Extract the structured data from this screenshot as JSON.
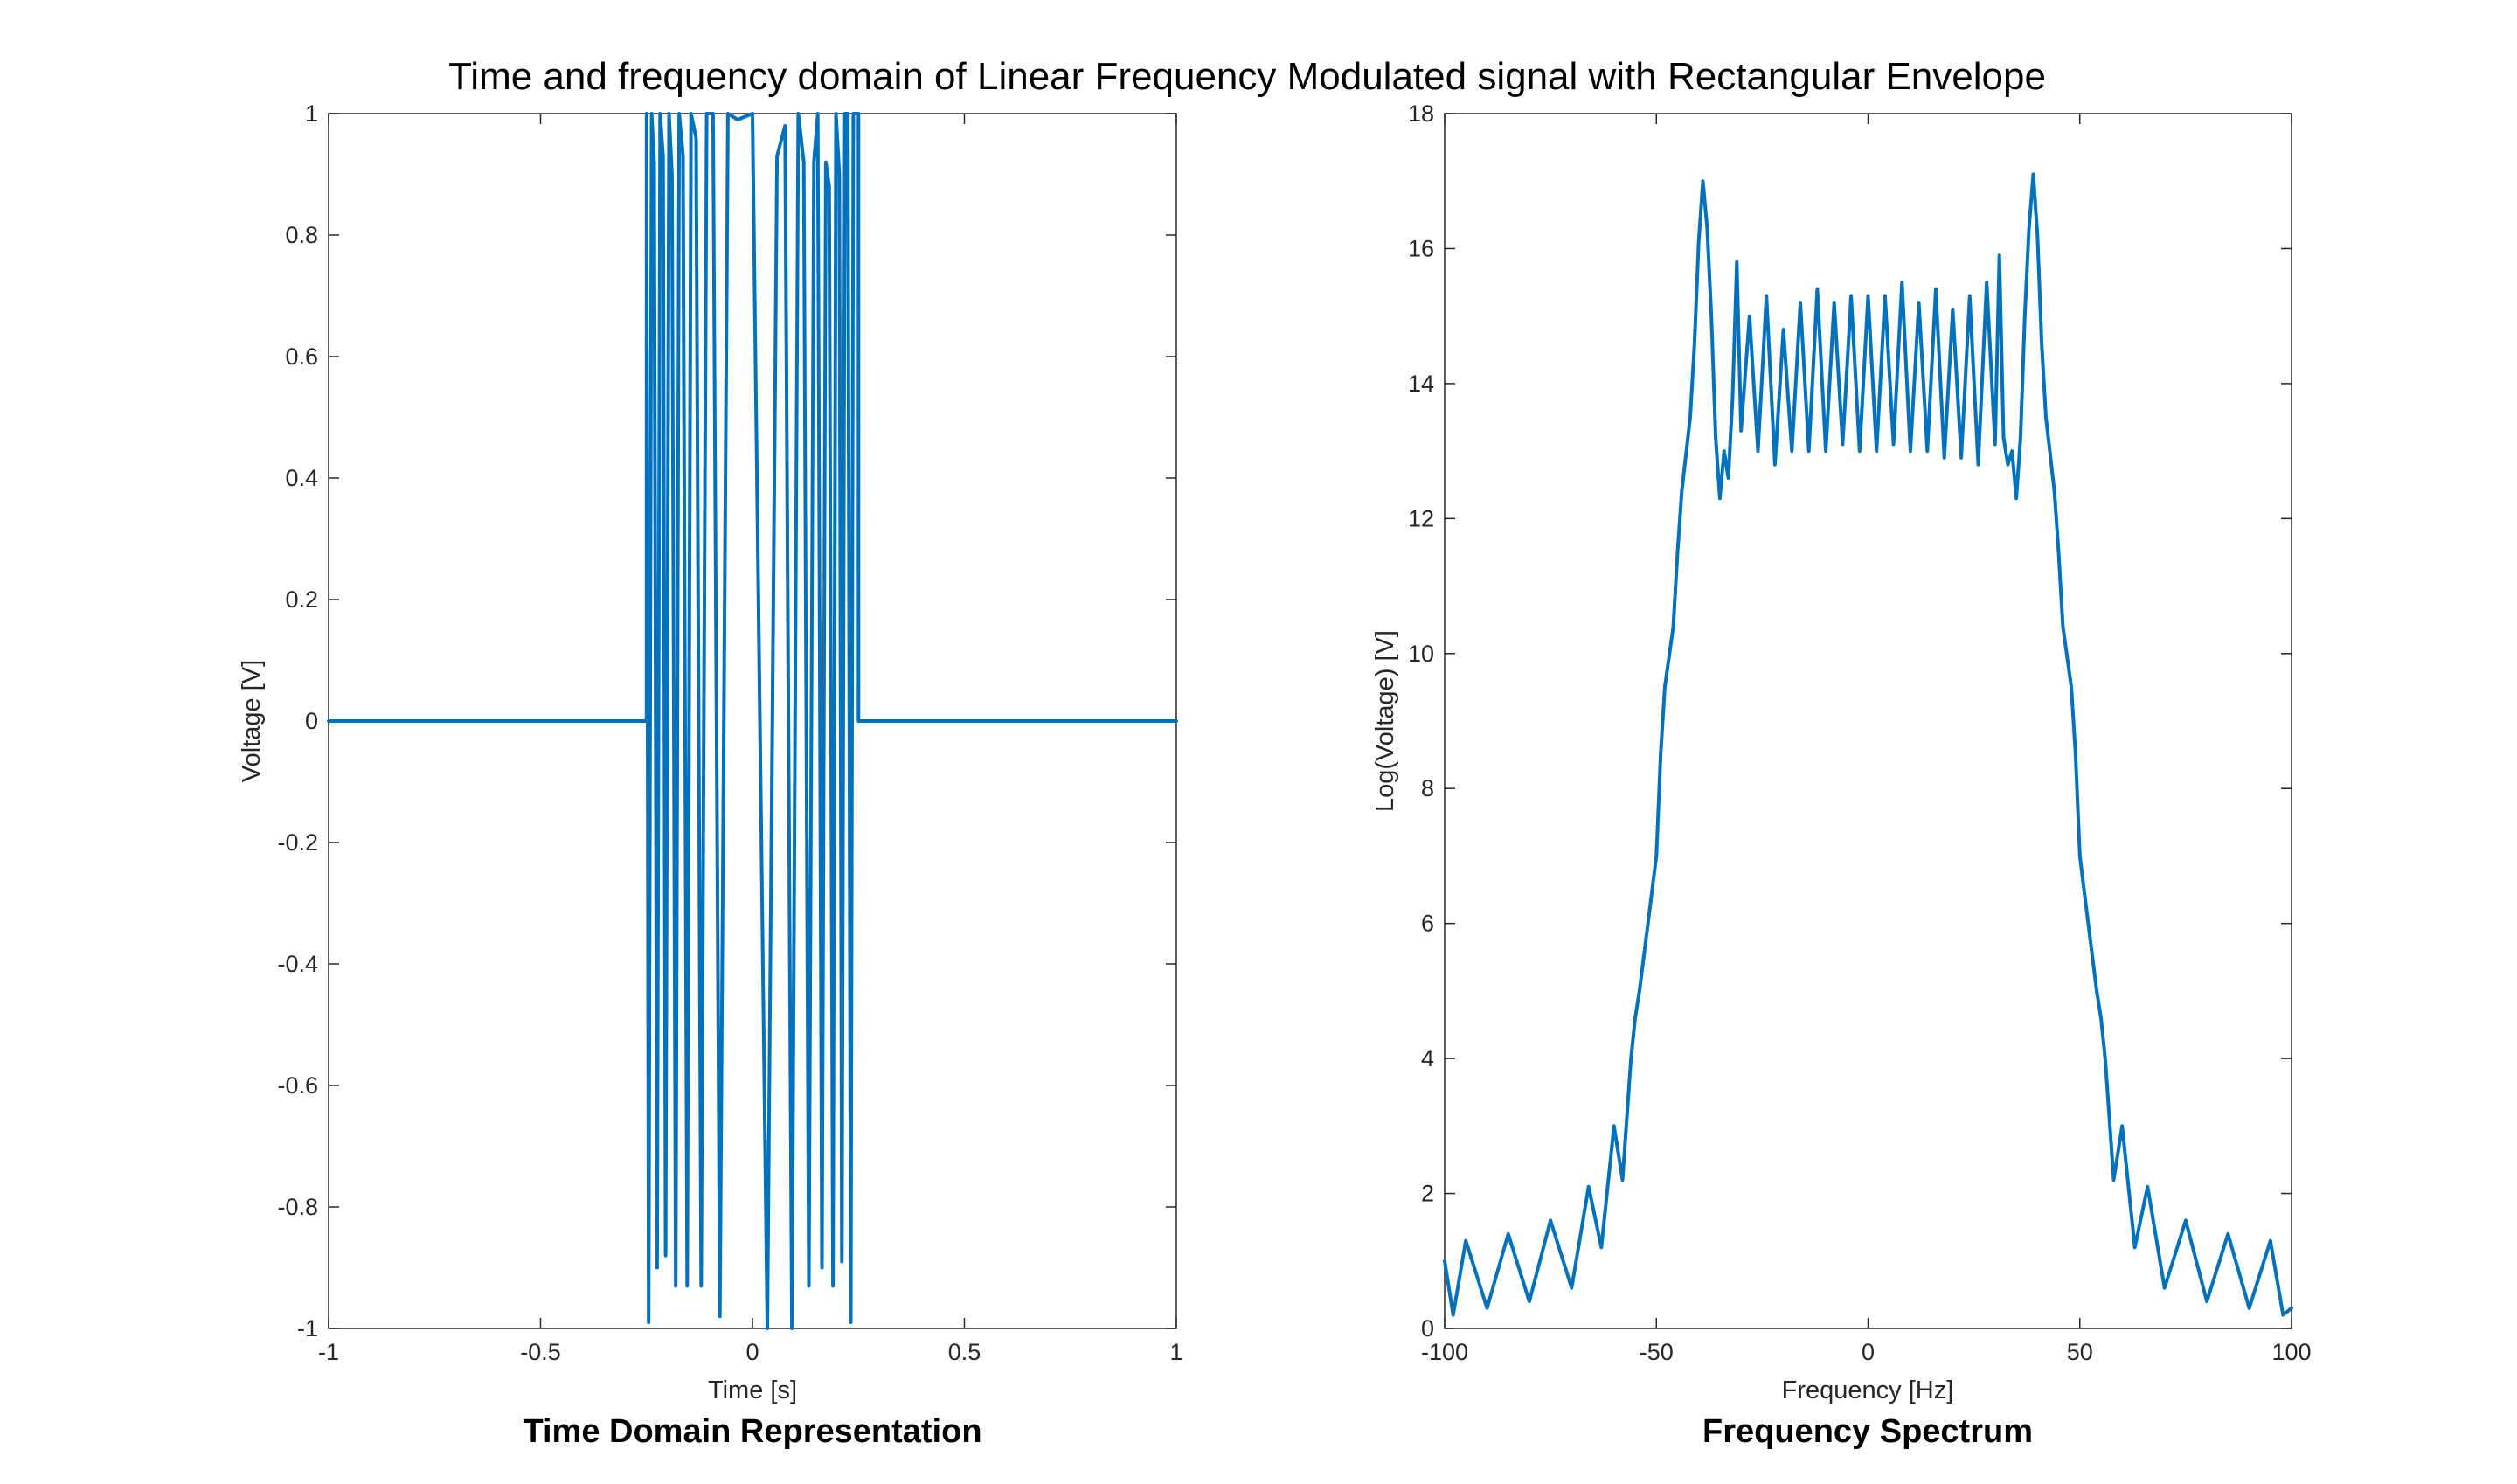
{
  "figure": {
    "title": "Time and frequency domain of Linear Frequency Modulated signal with Rectangular Envelope",
    "line_color": "#0072BD",
    "axes_color": "#262626"
  },
  "chart_data": [
    {
      "type": "line",
      "caption": "Time Domain Representation",
      "xlabel": "Time [s]",
      "ylabel": "Voltage [V]",
      "xlim": [
        -1,
        1
      ],
      "ylim": [
        -1,
        1
      ],
      "xticks": [
        -1,
        -0.5,
        0,
        0.5,
        1
      ],
      "xtick_labels": [
        "-1",
        "-0.5",
        "0",
        "0.5",
        "1"
      ],
      "yticks": [
        -1,
        -0.8,
        -0.6,
        -0.4,
        -0.2,
        0,
        0.2,
        0.4,
        0.6,
        0.8,
        1
      ],
      "ytick_labels": [
        "-1",
        "-0.8",
        "-0.6",
        "-0.4",
        "-0.2",
        "0",
        "0.2",
        "0.4",
        "0.6",
        "0.8",
        "1"
      ],
      "grid": false,
      "series": [
        {
          "x": [
            -1,
            -0.25,
            -0.25,
            -0.245,
            -0.238,
            -0.232,
            -0.225,
            -0.218,
            -0.211,
            -0.205,
            -0.197,
            -0.19,
            -0.181,
            -0.173,
            -0.164,
            -0.154,
            -0.145,
            -0.133,
            -0.121,
            -0.108,
            -0.093,
            -0.077,
            -0.058,
            -0.035,
            0,
            0.035,
            0.058,
            0.077,
            0.093,
            0.108,
            0.121,
            0.133,
            0.145,
            0.154,
            0.164,
            0.173,
            0.181,
            0.19,
            0.197,
            0.205,
            0.211,
            0.218,
            0.225,
            0.232,
            0.238,
            0.245,
            0.25,
            0.25,
            1
          ],
          "y": [
            0,
            0,
            1,
            -0.99,
            1,
            0.92,
            -0.9,
            1,
            0.93,
            -0.88,
            1,
            0.9,
            -0.93,
            1,
            0.93,
            -0.93,
            1,
            0.96,
            -0.93,
            1,
            1,
            -0.98,
            1,
            0.99,
            1,
            -1,
            0.93,
            0.98,
            -1,
            1,
            0.92,
            -0.93,
            0.92,
            1,
            -0.9,
            0.92,
            0.88,
            -0.93,
            1,
            0.9,
            -0.89,
            1,
            1,
            -0.99,
            1,
            1,
            1,
            0,
            0
          ]
        }
      ]
    },
    {
      "type": "line",
      "caption": "Frequency Spectrum",
      "xlabel": "Frequency [Hz]",
      "ylabel": "Log(Voltage) [V]",
      "xlim": [
        -100,
        100
      ],
      "ylim": [
        0,
        18
      ],
      "xticks": [
        -100,
        -50,
        0,
        50,
        100
      ],
      "xtick_labels": [
        "-100",
        "-50",
        "0",
        "50",
        "100"
      ],
      "yticks": [
        0,
        2,
        4,
        6,
        8,
        10,
        12,
        14,
        16,
        18
      ],
      "ytick_labels": [
        "0",
        "2",
        "4",
        "6",
        "8",
        "10",
        "12",
        "14",
        "16",
        "18"
      ],
      "grid": false,
      "series": [
        {
          "x": [
            -100,
            -98,
            -95,
            -90,
            -85,
            -80,
            -75,
            -70,
            -66,
            -63,
            -60,
            -58,
            -56,
            -55,
            -54,
            -52,
            -50,
            -49,
            -48,
            -46,
            -45,
            -44,
            -42,
            -41,
            -40,
            -39,
            -38,
            -37,
            -36,
            -35,
            -34,
            -33,
            -32,
            -31,
            -30,
            -28,
            -26,
            -24,
            -22,
            -20,
            -18,
            -16,
            -14,
            -12,
            -10,
            -8,
            -6,
            -4,
            -2,
            0,
            2,
            4,
            6,
            8,
            10,
            12,
            14,
            16,
            18,
            20,
            22,
            24,
            26,
            28,
            30,
            31,
            32,
            33,
            34,
            35,
            36,
            37,
            38,
            39,
            40,
            41,
            42,
            44,
            45,
            46,
            48,
            49,
            50,
            52,
            54,
            55,
            56,
            58,
            60,
            63,
            66,
            70,
            75,
            80,
            85,
            90,
            95,
            98,
            100
          ],
          "y": [
            1.0,
            0.2,
            1.3,
            0.3,
            1.4,
            0.4,
            1.6,
            0.6,
            2.1,
            1.2,
            3.0,
            2.2,
            4.0,
            4.6,
            5.0,
            6.0,
            7.0,
            8.5,
            9.5,
            10.4,
            11.5,
            12.4,
            13.5,
            14.6,
            16.1,
            17.0,
            16.3,
            15.0,
            13.2,
            12.3,
            13.0,
            12.6,
            13.8,
            15.8,
            13.3,
            15.0,
            13.0,
            15.3,
            12.8,
            14.8,
            13.0,
            15.2,
            13.0,
            15.4,
            13.0,
            15.2,
            13.1,
            15.3,
            13.0,
            15.3,
            13.0,
            15.3,
            13.1,
            15.5,
            13.0,
            15.2,
            13.0,
            15.4,
            12.9,
            15.1,
            12.9,
            15.3,
            12.8,
            15.5,
            13.1,
            15.9,
            13.2,
            12.8,
            13.0,
            12.3,
            13.2,
            15.0,
            16.3,
            17.1,
            16.2,
            14.6,
            13.5,
            12.4,
            11.5,
            10.4,
            9.5,
            8.5,
            7.0,
            6.0,
            5.0,
            4.6,
            4.0,
            2.2,
            3.0,
            1.2,
            2.1,
            0.6,
            1.6,
            0.4,
            1.4,
            0.3,
            1.3,
            0.2,
            0.3
          ]
        }
      ]
    }
  ]
}
